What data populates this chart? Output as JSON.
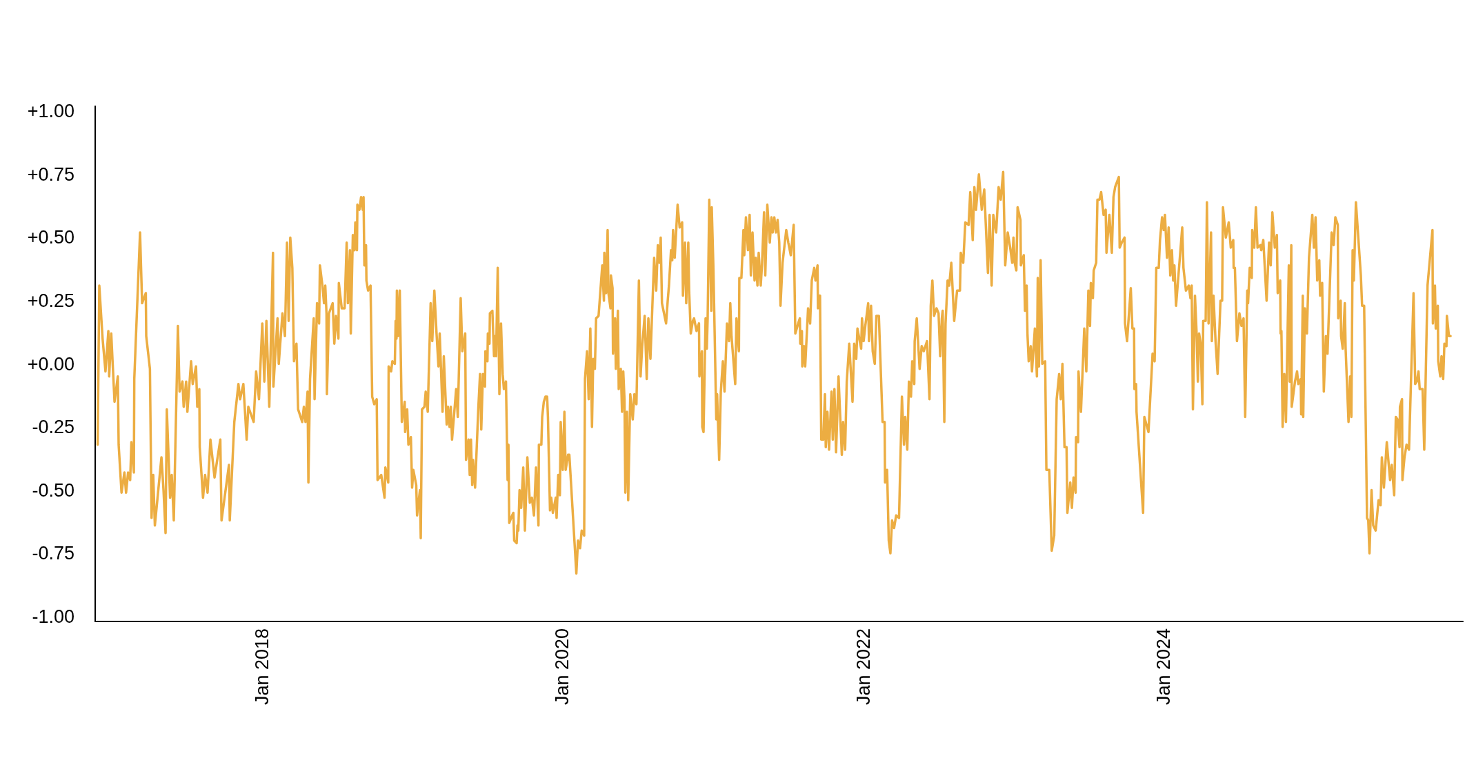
{
  "chart_data": {
    "type": "line",
    "color": "#ecad42",
    "xlim": [
      "2016-11-22",
      "2025-12-28"
    ],
    "xticks": [
      {
        "value": "2018-01-01",
        "label": "Jan 2018"
      },
      {
        "value": "2020-01-01",
        "label": "Jan 2020"
      },
      {
        "value": "2022-01-01",
        "label": "Jan 2022"
      },
      {
        "value": "2024-01-01",
        "label": "Jan 2024"
      }
    ],
    "ylim": [
      -1.02,
      1.02
    ],
    "yticks": [
      {
        "value": -1,
        "label": "-1.00"
      },
      {
        "value": -0.75,
        "label": "-0.75"
      },
      {
        "value": -0.5,
        "label": "-0.50"
      },
      {
        "value": -0.25,
        "label": "-0.25"
      },
      {
        "value": 0,
        "label": "+0.00"
      },
      {
        "value": 0.25,
        "label": "+0.25"
      },
      {
        "value": 0.5,
        "label": "+0.50"
      },
      {
        "value": 0.75,
        "label": "+0.75"
      },
      {
        "value": 1,
        "label": "+1.00"
      }
    ],
    "x": [
      "2016-11-28",
      "2016-12-02",
      "2016-12-10",
      "2016-12-17",
      "2016-12-24",
      "2016-12-26",
      "2016-12-31",
      "2017-01-08",
      "2017-01-16",
      "2017-01-18",
      "2017-01-25",
      "2017-02-01",
      "2017-02-05",
      "2017-02-10",
      "2017-02-15",
      "2017-02-18",
      "2017-02-24",
      "2017-02-25",
      "2017-03-11",
      "2017-03-16",
      "2017-03-25",
      "2017-03-26",
      "2017-04-04",
      "2017-04-08",
      "2017-04-12",
      "2017-04-16",
      "2017-05-02",
      "2017-05-07",
      "2017-05-12",
      "2017-05-15",
      "2017-05-23",
      "2017-05-27",
      "2017-06-01",
      "2017-06-11",
      "2017-06-15",
      "2017-06-22",
      "2017-06-25",
      "2017-07-01",
      "2017-07-04",
      "2017-07-13",
      "2017-07-17",
      "2017-07-25",
      "2017-07-28",
      "2017-08-02",
      "2017-08-03",
      "2017-08-11",
      "2017-08-16",
      "2017-08-22",
      "2017-08-29",
      "2017-09-08",
      "2017-09-22",
      "2017-09-25",
      "2017-10-13",
      "2017-10-15",
      "2017-10-26",
      "2017-11-05",
      "2017-11-09",
      "2017-11-17",
      "2017-11-25",
      "2017-11-29",
      "2017-12-12",
      "2017-12-18",
      "2017-12-25",
      "2018-01-02",
      "2018-01-07",
      "2018-01-12",
      "2018-01-19",
      "2018-01-28",
      "2018-01-29",
      "2018-02-08",
      "2018-02-11",
      "2018-02-20",
      "2018-02-26",
      "2018-03-03",
      "2018-03-07",
      "2018-03-11",
      "2018-03-16",
      "2018-03-20",
      "2018-03-26",
      "2018-03-30",
      "2018-04-09",
      "2018-04-13",
      "2018-04-17",
      "2018-04-22",
      "2018-04-24",
      "2018-04-28",
      "2018-05-07",
      "2018-05-09",
      "2018-05-15",
      "2018-05-20",
      "2018-05-22",
      "2018-05-28",
      "2018-06-01",
      "2018-06-04",
      "2018-06-07",
      "2018-06-08",
      "2018-06-13",
      "2018-06-22",
      "2018-06-26",
      "2018-06-30",
      "2018-07-06",
      "2018-07-07",
      "2018-07-14",
      "2018-07-21",
      "2018-07-26",
      "2018-07-29",
      "2018-08-03",
      "2018-08-05",
      "2018-08-10",
      "2018-08-14",
      "2018-08-16",
      "2018-08-20",
      "2018-08-21",
      "2018-08-26",
      "2018-08-30",
      "2018-09-03",
      "2018-09-05",
      "2018-09-07",
      "2018-09-11",
      "2018-09-12",
      "2018-09-16",
      "2018-09-22",
      "2018-09-26",
      "2018-10-01",
      "2018-10-07",
      "2018-10-09",
      "2018-10-18",
      "2018-10-26",
      "2018-10-28",
      "2018-11-04",
      "2018-11-05",
      "2018-11-11",
      "2018-11-14",
      "2018-11-20",
      "2018-11-22",
      "2018-11-24",
      "2018-11-25",
      "2018-11-28",
      "2018-12-02",
      "2018-12-07",
      "2018-12-14",
      "2018-12-15",
      "2018-12-20",
      "2018-12-23",
      "2018-12-29",
      "2019-01-01",
      "2019-01-04",
      "2019-01-11",
      "2019-01-13",
      "2019-01-20",
      "2019-01-22",
      "2019-01-25",
      "2019-01-31",
      "2019-02-03",
      "2019-02-08",
      "2019-02-15",
      "2019-02-19",
      "2019-02-24",
      "2019-03-01",
      "2019-03-06",
      "2019-03-09",
      "2019-03-16",
      "2019-03-19",
      "2019-03-26",
      "2019-03-29",
      "2019-04-02",
      "2019-04-05",
      "2019-04-08",
      "2019-04-18",
      "2019-04-22",
      "2019-04-29",
      "2019-05-03",
      "2019-05-10",
      "2019-05-12",
      "2019-05-18",
      "2019-05-21",
      "2019-05-24",
      "2019-05-27",
      "2019-05-29",
      "2019-06-03",
      "2019-06-11",
      "2019-06-15",
      "2019-06-18",
      "2019-06-22",
      "2019-06-27",
      "2019-06-28",
      "2019-07-03",
      "2019-07-04",
      "2019-07-08",
      "2019-07-09",
      "2019-07-15",
      "2019-07-19",
      "2019-07-21",
      "2019-07-24",
      "2019-07-28",
      "2019-08-01",
      "2019-08-05",
      "2019-08-09",
      "2019-08-12",
      "2019-08-17",
      "2019-08-21",
      "2019-08-23",
      "2019-08-25",
      "2019-09-01",
      "2019-09-04",
      "2019-09-06",
      "2019-09-12",
      "2019-09-14",
      "2019-09-16",
      "2019-09-19",
      "2019-09-23",
      "2019-09-28",
      "2019-10-02",
      "2019-10-08",
      "2019-10-14",
      "2019-10-19",
      "2019-10-24",
      "2019-10-29",
      "2019-11-04",
      "2019-11-05",
      "2019-11-11",
      "2019-11-13",
      "2019-11-17",
      "2019-11-21",
      "2019-11-25",
      "2019-11-27",
      "2019-12-02",
      "2019-12-05",
      "2019-12-09",
      "2019-12-16",
      "2019-12-18",
      "2019-12-22",
      "2019-12-26",
      "2019-12-28",
      "2020-01-02",
      "2020-01-06",
      "2020-01-09",
      "2020-01-15",
      "2020-01-18",
      "2020-02-04",
      "2020-02-08",
      "2020-02-13",
      "2020-02-17",
      "2020-02-23",
      "2020-02-25",
      "2020-03-01",
      "2020-03-05",
      "2020-03-09",
      "2020-03-13",
      "2020-03-16",
      "2020-03-20",
      "2020-03-23",
      "2020-03-29",
      "2020-04-07",
      "2020-04-11",
      "2020-04-12",
      "2020-04-16",
      "2020-04-20",
      "2020-04-22",
      "2020-04-27",
      "2020-04-28",
      "2020-05-02",
      "2020-05-03",
      "2020-05-08",
      "2020-05-10",
      "2020-05-15",
      "2020-05-17",
      "2020-05-22",
      "2020-05-25",
      "2020-05-28",
      "2020-05-31",
      "2020-06-02",
      "2020-06-06",
      "2020-06-09",
      "2020-06-14",
      "2020-06-20",
      "2020-06-24",
      "2020-06-29",
      "2020-07-05",
      "2020-07-09",
      "2020-07-13",
      "2020-07-19",
      "2020-07-24",
      "2020-07-28",
      "2020-08-02",
      "2020-08-11",
      "2020-08-16",
      "2020-08-20",
      "2020-08-24",
      "2020-08-27",
      "2020-08-30",
      "2020-09-09",
      "2020-09-13",
      "2020-09-16",
      "2020-09-21",
      "2020-09-24",
      "2020-09-26",
      "2020-09-30",
      "2020-10-07",
      "2020-10-12",
      "2020-10-18",
      "2020-10-20",
      "2020-10-25",
      "2020-10-28",
      "2020-11-02",
      "2020-11-04",
      "2020-11-08",
      "2020-11-13",
      "2020-11-16",
      "2020-11-22",
      "2020-11-28",
      "2020-11-29",
      "2020-12-05",
      "2020-12-06",
      "2020-12-09",
      "2020-12-14",
      "2020-12-17",
      "2020-12-19",
      "2020-12-23",
      "2020-12-28",
      "2020-12-29",
      "2021-01-02",
      "2021-01-09",
      "2021-01-11",
      "2021-01-16",
      "2021-01-20",
      "2021-01-25",
      "2021-01-29",
      "2021-02-04",
      "2021-02-09",
      "2021-02-12",
      "2021-02-15",
      "2021-02-24",
      "2021-02-27",
      "2021-03-05",
      "2021-03-06",
      "2021-03-11",
      "2021-03-16",
      "2021-03-18",
      "2021-03-22",
      "2021-03-27",
      "2021-03-31",
      "2021-04-03",
      "2021-04-07",
      "2021-04-12",
      "2021-04-15",
      "2021-04-19",
      "2021-04-22",
      "2021-04-27",
      "2021-04-30",
      "2021-05-05",
      "2021-05-08",
      "2021-05-13",
      "2021-05-19",
      "2021-05-23",
      "2021-05-26",
      "2021-05-30",
      "2021-06-03",
      "2021-06-07",
      "2021-06-11",
      "2021-06-14",
      "2021-06-19",
      "2021-06-28",
      "2021-07-03",
      "2021-07-09",
      "2021-07-16",
      "2021-07-20",
      "2021-07-27",
      "2021-07-31",
      "2021-08-01",
      "2021-08-05",
      "2021-08-06",
      "2021-08-10",
      "2021-08-13",
      "2021-08-20",
      "2021-08-25",
      "2021-08-29",
      "2021-09-04",
      "2021-09-07",
      "2021-09-12",
      "2021-09-13",
      "2021-09-18",
      "2021-09-21",
      "2021-09-26",
      "2021-09-30",
      "2021-10-02",
      "2021-10-06",
      "2021-10-10",
      "2021-10-16",
      "2021-10-19",
      "2021-10-23",
      "2021-10-27",
      "2021-11-02",
      "2021-11-10",
      "2021-11-13",
      "2021-11-18",
      "2021-11-22",
      "2021-11-28",
      "2021-12-06",
      "2021-12-10",
      "2021-12-15",
      "2021-12-18",
      "2021-12-27",
      "2021-12-29",
      "2022-01-02",
      "2022-01-06",
      "2022-01-13",
      "2022-01-15",
      "2022-01-20",
      "2022-01-24",
      "2022-01-29",
      "2022-02-02",
      "2022-02-08",
      "2022-02-17",
      "2022-02-22",
      "2022-02-23",
      "2022-02-28",
      "2022-03-04",
      "2022-03-08",
      "2022-03-12",
      "2022-03-17",
      "2022-03-22",
      "2022-03-29",
      "2022-04-05",
      "2022-04-10",
      "2022-04-13",
      "2022-04-18",
      "2022-04-22",
      "2022-04-27",
      "2022-04-30",
      "2022-05-05",
      "2022-05-06",
      "2022-05-11",
      "2022-05-18",
      "2022-05-23",
      "2022-05-28",
      "2022-06-05",
      "2022-06-11",
      "2022-06-14",
      "2022-06-18",
      "2022-06-22",
      "2022-06-28",
      "2022-07-03",
      "2022-07-07",
      "2022-07-11",
      "2022-07-13",
      "2022-07-17",
      "2022-07-20",
      "2022-07-25",
      "2022-07-29",
      "2022-08-03",
      "2022-08-10",
      "2022-08-17",
      "2022-08-24",
      "2022-08-26",
      "2022-09-01",
      "2022-09-06",
      "2022-09-14",
      "2022-09-18",
      "2022-09-24",
      "2022-09-28",
      "2022-10-02",
      "2022-10-09",
      "2022-10-16",
      "2022-10-22",
      "2022-10-31",
      "2022-11-04",
      "2022-11-09",
      "2022-11-13",
      "2022-11-20",
      "2022-11-26",
      "2022-12-01",
      "2022-12-07",
      "2022-12-12",
      "2022-12-18",
      "2022-12-24",
      "2022-12-29",
      "2023-01-01",
      "2023-01-04",
      "2023-01-08",
      "2023-01-10",
      "2023-01-11",
      "2023-01-18",
      "2023-01-19",
      "2023-01-26",
      "2023-01-29",
      "2023-02-02",
      "2023-02-04",
      "2023-02-07",
      "2023-02-12",
      "2023-02-15",
      "2023-02-22",
      "2023-02-27",
      "2023-03-01",
      "2023-03-04",
      "2023-03-08",
      "2023-03-12",
      "2023-03-19",
      "2023-03-22",
      "2023-03-29",
      "2023-04-04",
      "2023-04-10",
      "2023-04-16",
      "2023-04-22",
      "2023-04-26",
      "2023-04-30",
      "2023-05-05",
      "2023-05-10",
      "2023-05-12",
      "2023-05-19",
      "2023-05-23",
      "2023-05-27",
      "2023-06-01",
      "2023-06-02",
      "2023-06-07",
      "2023-06-08",
      "2023-06-14",
      "2023-06-22",
      "2023-06-27",
      "2023-07-02",
      "2023-07-06",
      "2023-07-08",
      "2023-07-13",
      "2023-07-15",
      "2023-07-21",
      "2023-07-24",
      "2023-07-29",
      "2023-08-02",
      "2023-08-08",
      "2023-08-13",
      "2023-08-15",
      "2023-08-22",
      "2023-08-28",
      "2023-09-01",
      "2023-09-05",
      "2023-09-14",
      "2023-09-16",
      "2023-09-21",
      "2023-09-28",
      "2023-09-29",
      "2023-10-04",
      "2023-10-13",
      "2023-10-17",
      "2023-10-21",
      "2023-10-22",
      "2023-10-26",
      "2023-10-27",
      "2023-11-12",
      "2023-11-15",
      "2023-11-25",
      "2023-12-05",
      "2023-12-10",
      "2023-12-14",
      "2023-12-20",
      "2023-12-23",
      "2023-12-28",
      "2024-01-01",
      "2024-01-04",
      "2024-01-09",
      "2024-01-13",
      "2024-01-17",
      "2024-01-21",
      "2024-01-24",
      "2024-01-27",
      "2024-01-31",
      "2024-02-15",
      "2024-02-18",
      "2024-02-24",
      "2024-03-02",
      "2024-03-06",
      "2024-03-09",
      "2024-03-12",
      "2024-03-17",
      "2024-03-21",
      "2024-03-24",
      "2024-03-27",
      "2024-03-31",
      "2024-04-04",
      "2024-04-06",
      "2024-04-12",
      "2024-04-15",
      "2024-04-19",
      "2024-04-25",
      "2024-04-27",
      "2024-05-01",
      "2024-05-06",
      "2024-05-11",
      "2024-05-18",
      "2024-05-22",
      "2024-05-24",
      "2024-05-31",
      "2024-06-07",
      "2024-06-12",
      "2024-06-18",
      "2024-06-19",
      "2024-06-22",
      "2024-06-27",
      "2024-07-03",
      "2024-07-08",
      "2024-07-13",
      "2024-07-17",
      "2024-07-22",
      "2024-07-24",
      "2024-07-28",
      "2024-08-02",
      "2024-08-03",
      "2024-08-08",
      "2024-08-12",
      "2024-08-16",
      "2024-08-23",
      "2024-08-25",
      "2024-08-30",
      "2024-09-07",
      "2024-09-13",
      "2024-09-17",
      "2024-09-21",
      "2024-09-27",
      "2024-10-02",
      "2024-10-04",
      "2024-10-10",
      "2024-10-11",
      "2024-10-13",
      "2024-10-16",
      "2024-10-20",
      "2024-10-24",
      "2024-10-31",
      "2024-11-02",
      "2024-11-06",
      "2024-11-07",
      "2024-11-15",
      "2024-11-20",
      "2024-11-23",
      "2024-11-29",
      "2024-11-30",
      "2024-12-04",
      "2024-12-05",
      "2024-12-09",
      "2024-12-14",
      "2024-12-19",
      "2024-12-27",
      "2024-12-31",
      "2025-01-04",
      "2025-01-08",
      "2025-01-13",
      "2025-01-15",
      "2025-01-20",
      "2025-01-24",
      "2025-01-29",
      "2025-02-02",
      "2025-02-12",
      "2025-02-17",
      "2025-02-21",
      "2025-02-27",
      "2025-02-28",
      "2025-03-06",
      "2025-03-07",
      "2025-03-11",
      "2025-03-16",
      "2025-03-18",
      "2025-03-25",
      "2025-03-29",
      "2025-04-01",
      "2025-04-04",
      "2025-04-07",
      "2025-04-12",
      "2025-04-24",
      "2025-04-27",
      "2025-05-02",
      "2025-05-09",
      "2025-05-12",
      "2025-05-15",
      "2025-05-20",
      "2025-05-24",
      "2025-05-30",
      "2025-06-06",
      "2025-06-11",
      "2025-06-14",
      "2025-06-19",
      "2025-06-26",
      "2025-07-04",
      "2025-07-08",
      "2025-07-14",
      "2025-07-18",
      "2025-07-22",
      "2025-07-27",
      "2025-07-28",
      "2025-08-02",
      "2025-08-03",
      "2025-08-08",
      "2025-08-13",
      "2025-08-19",
      "2025-08-30",
      "2025-09-03",
      "2025-09-07",
      "2025-09-11",
      "2025-09-14",
      "2025-09-21",
      "2025-09-25",
      "2025-10-03",
      "2025-10-15",
      "2025-10-16",
      "2025-10-21",
      "2025-10-23",
      "2025-10-28",
      "2025-10-29",
      "2025-11-03",
      "2025-11-06",
      "2025-11-10",
      "2025-11-13",
      "2025-11-18",
      "2025-11-19",
      "2025-11-24",
      "2025-11-28"
    ],
    "values": [
      -0.32,
      0.31,
      0.1,
      -0.03,
      0.13,
      -0.05,
      0.12,
      -0.15,
      -0.05,
      -0.32,
      -0.51,
      -0.43,
      -0.51,
      -0.43,
      -0.46,
      -0.31,
      -0.43,
      -0.06,
      0.52,
      0.24,
      0.28,
      0.11,
      -0.02,
      -0.61,
      -0.44,
      -0.64,
      -0.37,
      -0.5,
      -0.67,
      -0.18,
      -0.53,
      -0.44,
      -0.62,
      0.15,
      -0.11,
      -0.07,
      -0.17,
      -0.07,
      -0.19,
      0.01,
      -0.08,
      -0.01,
      -0.17,
      -0.1,
      -0.33,
      -0.53,
      -0.44,
      -0.51,
      -0.3,
      -0.45,
      -0.3,
      -0.62,
      -0.4,
      -0.62,
      -0.23,
      -0.08,
      -0.14,
      -0.08,
      -0.3,
      -0.17,
      -0.23,
      -0.03,
      -0.14,
      0.16,
      -0.07,
      0.17,
      -0.17,
      0.44,
      -0.09,
      0.18,
      0.0,
      0.2,
      0.11,
      0.48,
      0.17,
      0.5,
      0.38,
      0.01,
      0.08,
      -0.18,
      -0.23,
      -0.17,
      -0.23,
      -0.11,
      -0.47,
      -0.06,
      0.18,
      -0.14,
      0.24,
      0.16,
      0.39,
      0.31,
      0.24,
      0.31,
      0.2,
      -0.12,
      0.2,
      0.24,
      0.08,
      0.19,
      0.1,
      0.32,
      0.22,
      0.22,
      0.48,
      0.24,
      0.45,
      0.12,
      0.51,
      0.45,
      0.56,
      0.45,
      0.63,
      0.61,
      0.66,
      0.61,
      0.66,
      0.39,
      0.47,
      0.33,
      0.29,
      0.31,
      -0.13,
      -0.16,
      -0.14,
      -0.46,
      -0.44,
      -0.53,
      -0.41,
      -0.47,
      -0.01,
      -0.03,
      0.01,
      0.0,
      0.17,
      0.1,
      0.29,
      0.11,
      0.29,
      -0.23,
      -0.15,
      -0.27,
      -0.18,
      -0.32,
      -0.29,
      -0.49,
      -0.42,
      -0.48,
      -0.6,
      -0.5,
      -0.69,
      -0.18,
      -0.17,
      -0.11,
      -0.19,
      0.24,
      0.09,
      0.29,
      0.13,
      -0.01,
      0.12,
      -0.19,
      0.03,
      -0.24,
      -0.17,
      -0.25,
      -0.17,
      -0.3,
      -0.1,
      -0.21,
      0.26,
      0.05,
      0.12,
      -0.38,
      -0.3,
      -0.44,
      -0.3,
      -0.48,
      -0.38,
      -0.49,
      -0.17,
      -0.04,
      -0.26,
      -0.04,
      -0.09,
      0.05,
      0.01,
      0.12,
      0.08,
      0.2,
      0.21,
      0.03,
      0.11,
      0.03,
      0.38,
      -0.12,
      0.16,
      -0.04,
      -0.1,
      -0.07,
      -0.46,
      -0.32,
      -0.63,
      -0.6,
      -0.59,
      -0.7,
      -0.71,
      -0.64,
      -0.66,
      -0.5,
      -0.57,
      -0.41,
      -0.66,
      -0.37,
      -0.55,
      -0.53,
      -0.6,
      -0.41,
      -0.64,
      -0.32,
      -0.32,
      -0.21,
      -0.15,
      -0.13,
      -0.13,
      -0.21,
      -0.58,
      -0.53,
      -0.59,
      -0.53,
      -0.61,
      -0.44,
      -0.52,
      -0.23,
      -0.42,
      -0.19,
      -0.42,
      -0.36,
      -0.36,
      -0.83,
      -0.7,
      -0.73,
      -0.66,
      -0.68,
      -0.06,
      0.05,
      -0.14,
      0.14,
      -0.25,
      0.02,
      -0.02,
      0.18,
      0.19,
      0.39,
      0.25,
      0.44,
      0.28,
      0.53,
      0.28,
      0.22,
      0.35,
      0.3,
      0.04,
      0.18,
      -0.02,
      0.21,
      -0.1,
      -0.02,
      -0.19,
      -0.03,
      -0.14,
      -0.51,
      -0.19,
      -0.54,
      -0.12,
      -0.22,
      -0.12,
      -0.16,
      0.33,
      -0.05,
      0.07,
      0.19,
      -0.06,
      0.18,
      0.02,
      0.42,
      0.29,
      0.47,
      0.4,
      0.5,
      0.24,
      0.16,
      0.25,
      0.31,
      0.45,
      0.41,
      0.53,
      0.42,
      0.63,
      0.54,
      0.56,
      0.27,
      0.48,
      0.24,
      0.48,
      0.29,
      0.12,
      0.17,
      0.18,
      0.13,
      0.16,
      -0.05,
      0.05,
      -0.25,
      -0.27,
      0.18,
      0.06,
      0.18,
      0.65,
      0.21,
      0.62,
      0.38,
      -0.22,
      -0.12,
      -0.38,
      -0.11,
      0.01,
      -0.11,
      0.16,
      0.09,
      0.24,
      0.11,
      -0.08,
      0.18,
      0.05,
      0.34,
      0.34,
      0.53,
      0.43,
      0.58,
      0.45,
      0.59,
      0.35,
      0.52,
      0.33,
      0.42,
      0.31,
      0.44,
      0.31,
      0.39,
      0.6,
      0.35,
      0.63,
      0.48,
      0.58,
      0.52,
      0.58,
      0.52,
      0.57,
      0.48,
      0.23,
      0.4,
      0.53,
      0.48,
      0.43,
      0.55,
      0.12,
      0.16,
      0.18,
      0.08,
      0.13,
      -0.01,
      0.07,
      -0.01,
      0.22,
      0.16,
      0.33,
      0.38,
      0.33,
      0.39,
      0.22,
      0.27,
      -0.3,
      -0.3,
      -0.12,
      -0.33,
      -0.19,
      -0.34,
      -0.11,
      -0.3,
      -0.1,
      -0.35,
      -0.05,
      -0.36,
      -0.23,
      -0.34,
      -0.07,
      0.08,
      -0.15,
      0.08,
      0.02,
      0.14,
      0.06,
      0.18,
      0.09,
      0.15,
      0.24,
      0.09,
      0.23,
      0.05,
      0.0,
      0.19,
      0.19,
      -0.23,
      -0.23,
      -0.47,
      -0.42,
      -0.7,
      -0.75,
      -0.62,
      -0.65,
      -0.6,
      -0.61,
      -0.13,
      -0.32,
      -0.21,
      -0.34,
      -0.07,
      -0.13,
      0.01,
      -0.08,
      0.09,
      0.18,
      -0.02,
      0.07,
      0.05,
      0.09,
      -0.14,
      0.23,
      0.33,
      0.19,
      0.22,
      0.2,
      0.03,
      0.18,
      0.21,
      -0.23,
      0.16,
      0.33,
      0.31,
      0.4,
      0.17,
      0.29,
      0.29,
      0.44,
      0.4,
      0.56,
      0.55,
      0.68,
      0.49,
      0.7,
      0.61,
      0.75,
      0.61,
      0.69,
      0.36,
      0.59,
      0.31,
      0.59,
      0.52,
      0.7,
      0.65,
      0.76,
      0.39,
      0.52,
      0.46,
      0.4,
      0.5,
      0.4,
      0.37,
      0.53,
      0.62,
      0.57,
      0.39,
      0.43,
      0.21,
      0.31,
      0.12,
      0.01,
      0.07,
      -0.03,
      0.14,
      -0.05,
      0.34,
      -0.01,
      0.41,
      0.0,
      0.01,
      -0.42,
      -0.42,
      -0.74,
      -0.68,
      -0.14,
      -0.04,
      -0.14,
      0.0,
      -0.33,
      -0.33,
      -0.59,
      -0.47,
      -0.57,
      -0.45,
      -0.51,
      -0.29,
      -0.31,
      -0.03,
      -0.19,
      0.14,
      -0.03,
      0.29,
      0.15,
      0.32,
      0.26,
      0.37,
      0.4,
      0.65,
      0.65,
      0.68,
      0.59,
      0.61,
      0.44,
      0.59,
      0.44,
      0.66,
      0.7,
      0.74,
      0.46,
      0.48,
      0.5,
      0.16,
      0.09,
      0.3,
      0.14,
      0.14,
      -0.1,
      -0.08,
      -0.19,
      -0.59,
      -0.21,
      -0.27,
      0.04,
      0.01,
      0.38,
      0.38,
      0.49,
      0.58,
      0.53,
      0.59,
      0.42,
      0.54,
      0.35,
      0.45,
      0.33,
      0.39,
      0.23,
      0.54,
      0.38,
      0.29,
      0.31,
      0.26,
      0.31,
      -0.18,
      0.27,
      0.12,
      -0.07,
      0.12,
      0.08,
      -0.16,
      0.17,
      0.17,
      0.64,
      0.16,
      0.52,
      0.09,
      0.27,
      0.09,
      -0.04,
      0.25,
      0.25,
      0.62,
      0.5,
      0.56,
      0.46,
      0.49,
      0.38,
      0.38,
      0.09,
      0.2,
      0.15,
      0.18,
      -0.21,
      0.29,
      0.24,
      0.38,
      0.34,
      0.53,
      0.46,
      0.62,
      0.46,
      0.47,
      0.45,
      0.49,
      0.25,
      0.48,
      0.39,
      0.6,
      0.46,
      0.51,
      0.28,
      0.33,
      0.12,
      0.13,
      -0.25,
      -0.04,
      -0.23,
      0.39,
      -0.07,
      0.47,
      -0.17,
      -0.07,
      -0.03,
      -0.08,
      -0.06,
      -0.2,
      0.27,
      -0.21,
      0.22,
      0.12,
      0.42,
      0.59,
      0.46,
      0.58,
      0.33,
      0.41,
      0.27,
      0.32,
      -0.11,
      0.11,
      0.04,
      0.52,
      0.47,
      0.58,
      0.55,
      0.18,
      0.25,
      0.11,
      0.06,
      0.24,
      0.06,
      -0.23,
      -0.05,
      -0.21,
      0.45,
      0.33,
      0.64,
      0.35,
      0.23,
      0.23,
      -0.61,
      -0.62,
      -0.75,
      -0.5,
      -0.64,
      -0.66,
      -0.54,
      -0.56,
      -0.37,
      -0.49,
      -0.31,
      -0.46,
      -0.4,
      -0.52,
      -0.21,
      -0.22,
      -0.33,
      -0.17,
      -0.14,
      -0.46,
      -0.37,
      -0.32,
      -0.34,
      0.28,
      -0.08,
      -0.07,
      -0.03,
      -0.1,
      -0.1,
      -0.34,
      0.31,
      0.53,
      0.16,
      0.31,
      0.14,
      0.23,
      0.01,
      -0.05,
      0.03,
      -0.06,
      0.08,
      0.07,
      0.19,
      0.11,
      0.11
    ]
  }
}
